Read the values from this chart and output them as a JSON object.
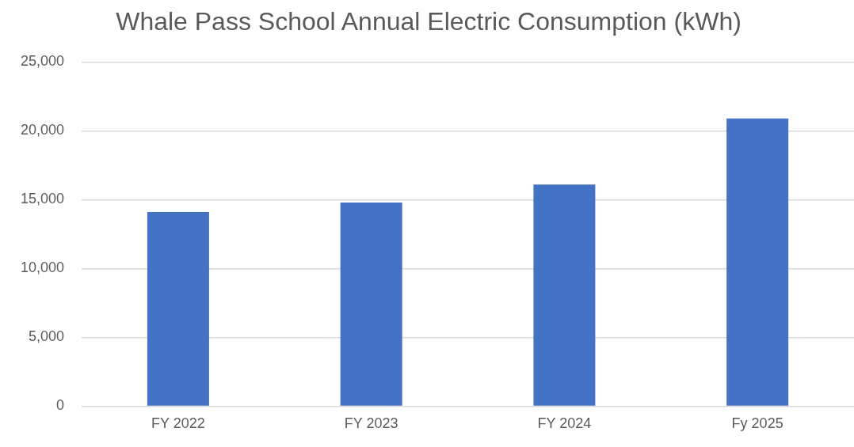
{
  "chart_data": {
    "type": "bar",
    "title": "Whale Pass School Annual Electric Consumption (kWh)",
    "categories": [
      "FY 2022",
      "FY 2023",
      "FY 2024",
      "Fy 2025"
    ],
    "values": [
      14100,
      14800,
      16100,
      20900
    ],
    "color": "#4472c4",
    "ylim": [
      0,
      25000
    ],
    "yticks": [
      {
        "value": 0,
        "label": "0"
      },
      {
        "value": 5000,
        "label": "5,000"
      },
      {
        "value": 10000,
        "label": "10,000"
      },
      {
        "value": 15000,
        "label": "15,000"
      },
      {
        "value": 20000,
        "label": "20,000"
      },
      {
        "value": 25000,
        "label": "25,000"
      }
    ],
    "grid": "y",
    "legend": false
  }
}
